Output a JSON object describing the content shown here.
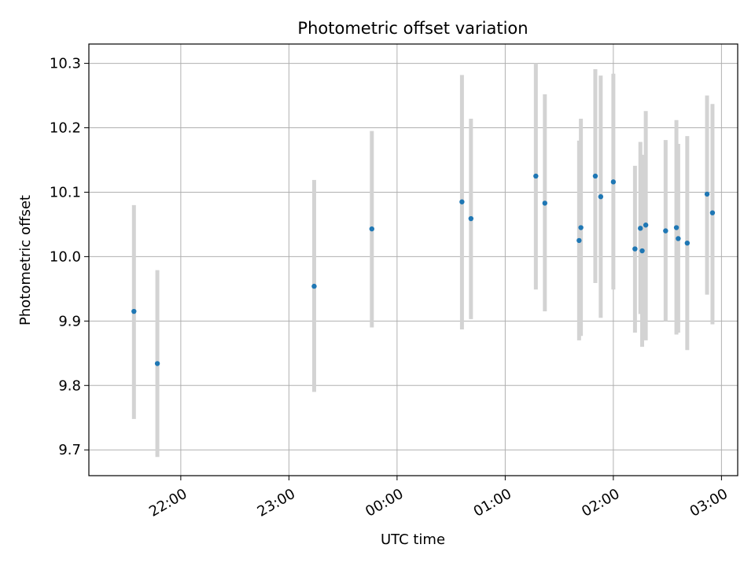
{
  "chart_data": {
    "type": "scatter",
    "title": "Photometric offset variation",
    "xlabel": "UTC time",
    "ylabel": "Photometric offset",
    "x_axis_type": "time",
    "x_reference_date_note": "",
    "xlim": [
      "21:09",
      "23:59+03:09"
    ],
    "x_ticks": [
      "22:00",
      "23:00",
      "00:00",
      "01:00",
      "02:00",
      "03:00"
    ],
    "y_ticks": [
      "9.7",
      "9.8",
      "9.9",
      "10.0",
      "10.1",
      "10.2",
      "10.3"
    ],
    "ylim": [
      9.66,
      10.33
    ],
    "grid": true,
    "error_bars": true,
    "colors": {
      "point": "#1f77b4",
      "errorbar": "#d3d3d3",
      "grid": "#b0b0b0"
    },
    "points": [
      {
        "time": "21:34",
        "y": 9.915,
        "ylow": 9.748,
        "yhigh": 10.08
      },
      {
        "time": "21:47",
        "y": 9.834,
        "ylow": 9.689,
        "yhigh": 9.979
      },
      {
        "time": "23:14",
        "y": 9.954,
        "ylow": 9.79,
        "yhigh": 10.119
      },
      {
        "time": "23:46",
        "y": 10.043,
        "ylow": 9.89,
        "yhigh": 10.195
      },
      {
        "time": "00:36",
        "y": 10.085,
        "ylow": 9.887,
        "yhigh": 10.282
      },
      {
        "time": "00:41",
        "y": 10.059,
        "ylow": 9.903,
        "yhigh": 10.214
      },
      {
        "time": "01:17",
        "y": 10.125,
        "ylow": 9.949,
        "yhigh": 10.3
      },
      {
        "time": "01:22",
        "y": 10.083,
        "ylow": 9.915,
        "yhigh": 10.252
      },
      {
        "time": "01:41",
        "y": 10.025,
        "ylow": 9.87,
        "yhigh": 10.18
      },
      {
        "time": "01:42",
        "y": 10.045,
        "ylow": 9.877,
        "yhigh": 10.214
      },
      {
        "time": "01:50",
        "y": 10.125,
        "ylow": 9.959,
        "yhigh": 10.291
      },
      {
        "time": "01:53",
        "y": 10.093,
        "ylow": 9.905,
        "yhigh": 10.281
      },
      {
        "time": "02:00",
        "y": 10.116,
        "ylow": 9.949,
        "yhigh": 10.284
      },
      {
        "time": "02:12",
        "y": 10.012,
        "ylow": 9.882,
        "yhigh": 10.141
      },
      {
        "time": "02:15",
        "y": 10.044,
        "ylow": 9.911,
        "yhigh": 10.178
      },
      {
        "time": "02:16",
        "y": 10.009,
        "ylow": 9.86,
        "yhigh": 10.158
      },
      {
        "time": "02:18",
        "y": 10.049,
        "ylow": 9.87,
        "yhigh": 10.226
      },
      {
        "time": "02:29",
        "y": 10.04,
        "ylow": 9.9,
        "yhigh": 10.181
      },
      {
        "time": "02:35",
        "y": 10.045,
        "ylow": 9.879,
        "yhigh": 10.212
      },
      {
        "time": "02:36",
        "y": 10.028,
        "ylow": 9.882,
        "yhigh": 10.175
      },
      {
        "time": "02:41",
        "y": 10.021,
        "ylow": 9.855,
        "yhigh": 10.187
      },
      {
        "time": "02:52",
        "y": 10.097,
        "ylow": 9.941,
        "yhigh": 10.25
      },
      {
        "time": "02:55",
        "y": 10.068,
        "ylow": 9.895,
        "yhigh": 10.237
      }
    ]
  }
}
